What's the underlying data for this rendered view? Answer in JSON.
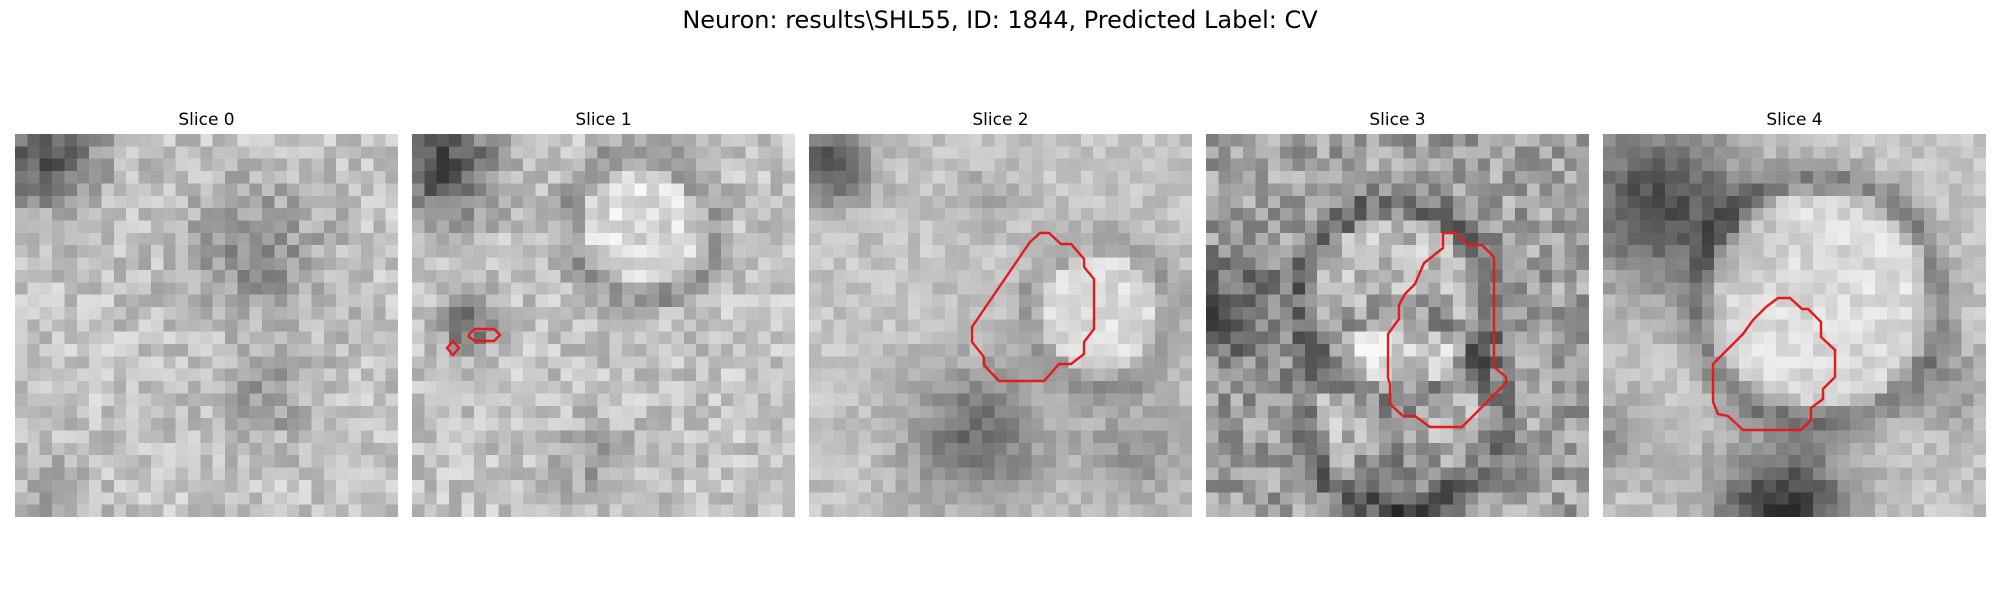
{
  "figure": {
    "title": "Neuron: results\\SHL55, ID: 1844, Predicted Label: CV"
  },
  "colors": {
    "contour": "#e41a1c",
    "background": "#ffffff",
    "colormap": "grayscale"
  },
  "panels": [
    {
      "title": "Slice 0"
    },
    {
      "title": "Slice 1"
    },
    {
      "title": "Slice 2"
    },
    {
      "title": "Slice 3"
    },
    {
      "title": "Slice 4"
    }
  ]
}
